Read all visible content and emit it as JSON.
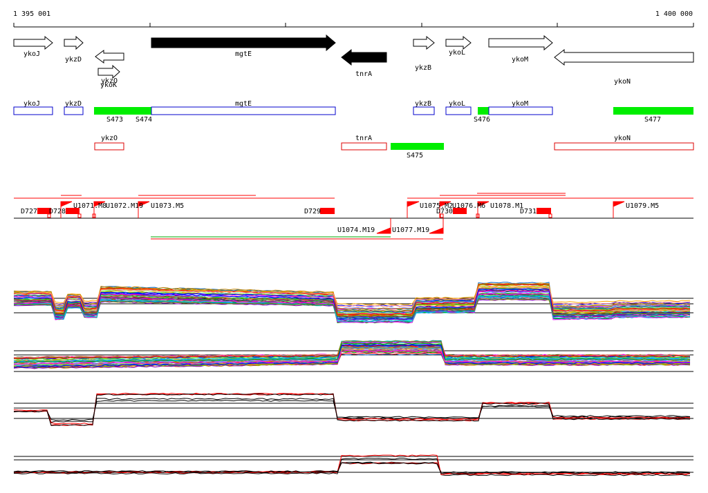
{
  "ruler": {
    "start_label": "1 395 001",
    "end_label": "1 400 000"
  },
  "colors": {
    "gene_forward": "#ffffff",
    "gene_reverse": "#000000",
    "segment_green": "#00ee00",
    "segment_red": "#ff0000",
    "track_blue": "#0000cc",
    "track_red": "#dd0000"
  },
  "genes": [
    {
      "label": "ykoJ",
      "strand": "+",
      "fill": "white"
    },
    {
      "label": "ykzD",
      "strand": "+",
      "fill": "white"
    },
    {
      "label": "ykzO",
      "strand": "-",
      "fill": "white"
    },
    {
      "label": "ykoK",
      "strand": "+",
      "fill": "white"
    },
    {
      "label": "mgtE",
      "strand": "+",
      "fill": "black"
    },
    {
      "label": "tnrA",
      "strand": "-",
      "fill": "black"
    },
    {
      "label": "ykzB",
      "strand": "+",
      "fill": "white"
    },
    {
      "label": "ykoL",
      "strand": "+",
      "fill": "white"
    },
    {
      "label": "ykoM",
      "strand": "+",
      "fill": "white"
    },
    {
      "label": "ykoN",
      "strand": "-",
      "fill": "white"
    }
  ],
  "blue_track_labels": [
    "ykoJ",
    "ykzD",
    "mgtE",
    "ykzB",
    "ykoL",
    "ykoM"
  ],
  "green_segments": [
    "S473",
    "S474",
    "S476",
    "S477",
    "S475"
  ],
  "red_track_labels": [
    "ykzO",
    "tnrA",
    "ykoN"
  ],
  "features_D": [
    "D727",
    "D728",
    "D729",
    "D730",
    "D731"
  ],
  "features_U": [
    "U1071.M8",
    "U1072.M19",
    "U1073.M5",
    "U1074.M19",
    "U1075.M2",
    "U1076.M6",
    "U1077.M19",
    "U1078.M1",
    "U1079.M5"
  ]
}
